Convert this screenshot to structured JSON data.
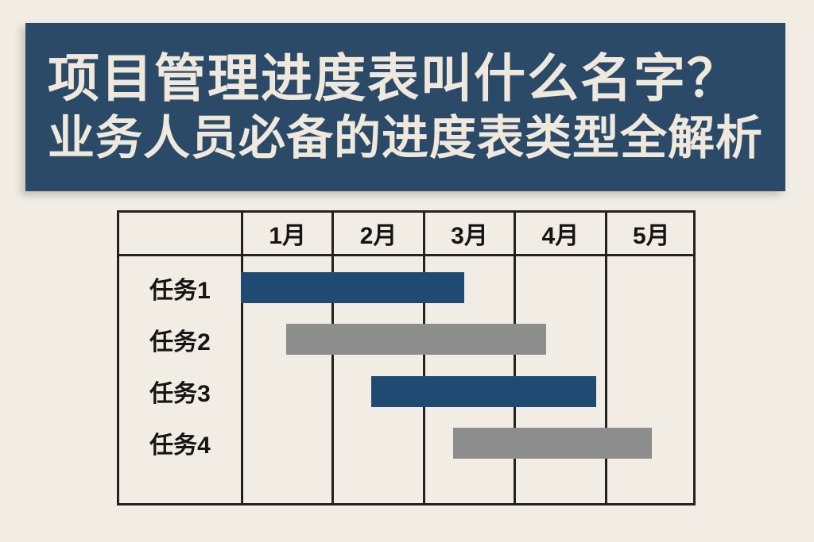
{
  "banner": {
    "title_line1": "项目管理进度表叫什么名字？",
    "title_line2": "业务人员必备的进度表类型全解析",
    "bg_color": "#2b4a68",
    "text_color": "#efe8dc"
  },
  "chart_data": {
    "type": "bar",
    "subtype": "gantt",
    "months": [
      "1月",
      "2月",
      "3月",
      "4月",
      "5月"
    ],
    "tasks": [
      {
        "label": "任务1",
        "start": 0.0,
        "end": 2.46,
        "color": "#1f4a72"
      },
      {
        "label": "任务2",
        "start": 0.5,
        "end": 3.36,
        "color": "#8d8d8d"
      },
      {
        "label": "任务3",
        "start": 1.43,
        "end": 3.91,
        "color": "#1f4a72"
      },
      {
        "label": "任务4",
        "start": 2.33,
        "end": 4.52,
        "color": "#8d8d8d"
      }
    ],
    "x_unit": "month",
    "xlim": [
      0,
      5
    ],
    "grid": "vertical-only",
    "legend": "none"
  },
  "colors": {
    "page_bg": "#f1ece4",
    "banner_bg": "#2b4a68",
    "banner_text": "#efe8dc",
    "bar_blue": "#1f4a72",
    "bar_gray": "#8d8d8d",
    "table_border": "#242220",
    "label_text": "#161514"
  }
}
